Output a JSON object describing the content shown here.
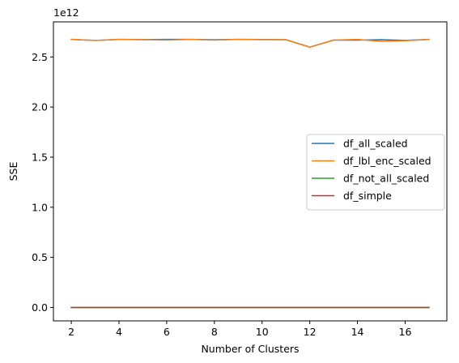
{
  "chart_data": {
    "type": "line",
    "xlabel": "Number of Clusters",
    "ylabel": "SSE",
    "y_offset_text": "1e12",
    "y_scale": 1000000000000.0,
    "xlim": [
      1.25,
      17.75
    ],
    "ylim": [
      -0.1335,
      2.85
    ],
    "x_ticks": [
      2,
      4,
      6,
      8,
      10,
      12,
      14,
      16
    ],
    "y_ticks": [
      0.0,
      0.5,
      1.0,
      1.5,
      2.0,
      2.5
    ],
    "y_tick_labels": [
      "0.0",
      "0.5",
      "1.0",
      "1.5",
      "2.0",
      "2.5"
    ],
    "legend_position": "center-right",
    "grid": false,
    "x": [
      2,
      3,
      4,
      5,
      6,
      7,
      8,
      9,
      10,
      11,
      12,
      13,
      14,
      15,
      16,
      17
    ],
    "series": [
      {
        "name": "df_all_scaled",
        "color": "#1f77b4",
        "values": [
          2.675,
          2.665,
          2.675,
          2.673,
          2.675,
          2.675,
          2.672,
          2.675,
          2.674,
          2.672,
          2.598,
          2.668,
          2.668,
          2.672,
          2.665,
          2.675
        ]
      },
      {
        "name": "df_lbl_enc_scaled",
        "color": "#ff7f0e",
        "values": [
          2.675,
          2.665,
          2.675,
          2.672,
          2.668,
          2.675,
          2.668,
          2.675,
          2.672,
          2.672,
          2.598,
          2.668,
          2.675,
          2.655,
          2.662,
          2.675
        ]
      },
      {
        "name": "df_not_all_scaled",
        "color": "#2ca02c",
        "values": [
          0,
          0,
          0,
          0,
          0,
          0,
          0,
          0,
          0,
          0,
          0,
          0,
          0,
          0,
          0,
          0
        ]
      },
      {
        "name": "df_simple",
        "color": "#d62728",
        "values": [
          0,
          0,
          0,
          0,
          0,
          0,
          0,
          0,
          0,
          0,
          0,
          0,
          0,
          0,
          0,
          0
        ]
      }
    ]
  }
}
